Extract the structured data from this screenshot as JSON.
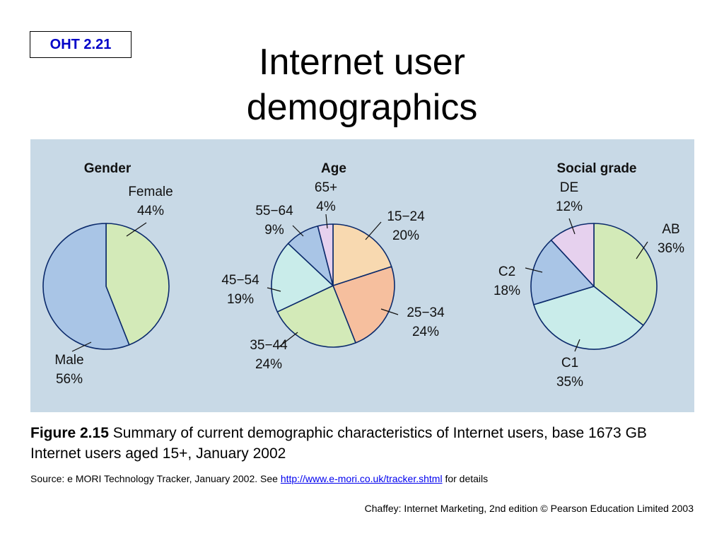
{
  "badge": "OHT 2.21",
  "title_line1": "Internet user",
  "title_line2": "demographics",
  "caption": {
    "figure_label": "Figure 2.15",
    "text": "Summary of current demographic characteristics of Internet users, base 1673 GB Internet users aged 15+, January 2002"
  },
  "source": {
    "prefix": "Source: e MORI Technology Tracker, January 2002. See",
    "link": "http://www.e-mori.co.uk/tracker.shtml",
    "suffix": "for details"
  },
  "footer": "Chaffey: Internet Marketing, 2nd edition © Pearson Education Limited 2003",
  "chart_data": [
    {
      "type": "pie",
      "title": "Gender",
      "slices": [
        {
          "label": "Female",
          "value": 44,
          "display": "44%",
          "color": "#d3eab8"
        },
        {
          "label": "Male",
          "value": 56,
          "display": "56%",
          "color": "#a9c5e6"
        }
      ]
    },
    {
      "type": "pie",
      "title": "Age",
      "slices": [
        {
          "label": "15−24",
          "value": 20,
          "display": "20%",
          "color": "#f8d9b0"
        },
        {
          "label": "25−34",
          "value": 24,
          "display": "24%",
          "color": "#f6bf9e"
        },
        {
          "label": "35−44",
          "value": 24,
          "display": "24%",
          "color": "#d3eab8"
        },
        {
          "label": "45−54",
          "value": 19,
          "display": "19%",
          "color": "#c9ecea"
        },
        {
          "label": "55−64",
          "value": 9,
          "display": "9%",
          "color": "#a9c5e6"
        },
        {
          "label": "65+",
          "value": 4,
          "display": "4%",
          "color": "#e6d1ee"
        }
      ]
    },
    {
      "type": "pie",
      "title": "Social grade",
      "slices": [
        {
          "label": "AB",
          "value": 36,
          "display": "36%",
          "color": "#d3eab8"
        },
        {
          "label": "C1",
          "value": 35,
          "display": "35%",
          "color": "#c9ecea"
        },
        {
          "label": "C2",
          "value": 18,
          "display": "18%",
          "color": "#a9c5e6"
        },
        {
          "label": "DE",
          "value": 12,
          "display": "12%",
          "color": "#e6d1ee"
        }
      ]
    }
  ]
}
